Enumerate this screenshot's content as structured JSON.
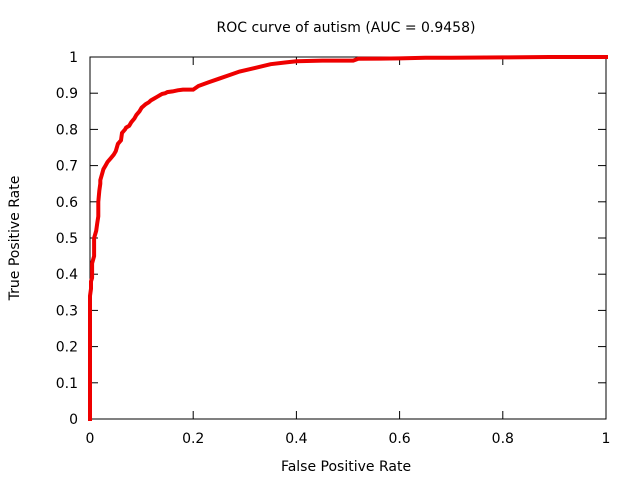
{
  "chart_data": {
    "type": "line",
    "title": "ROC curve of autism (AUC = 0.9458)",
    "xlabel": "False Positive Rate",
    "ylabel": "True Positive Rate",
    "xlim": [
      0,
      1
    ],
    "ylim": [
      0,
      1
    ],
    "grid": false,
    "legend": "none",
    "x_ticks": [
      "0",
      "0.2",
      "0.4",
      "0.6",
      "0.8",
      "1"
    ],
    "y_ticks": [
      "0",
      "0.1",
      "0.2",
      "0.3",
      "0.4",
      "0.5",
      "0.6",
      "0.7",
      "0.8",
      "0.9",
      "1"
    ],
    "line_color": "#ee0000",
    "series": [
      {
        "x": [
          0.0,
          0.0,
          0.002,
          0.002,
          0.004,
          0.004,
          0.006,
          0.008,
          0.008,
          0.012,
          0.014,
          0.016,
          0.016,
          0.018,
          0.02,
          0.02,
          0.024,
          0.026,
          0.03,
          0.034,
          0.04,
          0.046,
          0.05,
          0.054,
          0.06,
          0.062,
          0.068,
          0.07,
          0.076,
          0.08,
          0.086,
          0.09,
          0.096,
          0.1,
          0.104,
          0.108,
          0.114,
          0.118,
          0.124,
          0.13,
          0.136,
          0.14,
          0.146,
          0.15,
          0.16,
          0.17,
          0.18,
          0.2,
          0.21,
          0.23,
          0.25,
          0.27,
          0.29,
          0.32,
          0.35,
          0.38,
          0.4,
          0.45,
          0.51,
          0.52,
          0.6,
          0.65,
          0.7,
          0.8,
          0.89,
          0.9,
          1.0
        ],
        "y": [
          0.0,
          0.34,
          0.36,
          0.38,
          0.39,
          0.43,
          0.44,
          0.45,
          0.5,
          0.52,
          0.54,
          0.56,
          0.6,
          0.63,
          0.65,
          0.66,
          0.68,
          0.69,
          0.7,
          0.71,
          0.72,
          0.73,
          0.74,
          0.76,
          0.77,
          0.79,
          0.8,
          0.805,
          0.81,
          0.82,
          0.83,
          0.84,
          0.85,
          0.86,
          0.865,
          0.87,
          0.875,
          0.88,
          0.885,
          0.89,
          0.895,
          0.898,
          0.9,
          0.903,
          0.905,
          0.908,
          0.91,
          0.91,
          0.92,
          0.93,
          0.94,
          0.95,
          0.96,
          0.97,
          0.98,
          0.985,
          0.988,
          0.99,
          0.99,
          0.995,
          0.996,
          0.998,
          0.998,
          0.999,
          1.0,
          1.0,
          1.0
        ]
      }
    ]
  }
}
